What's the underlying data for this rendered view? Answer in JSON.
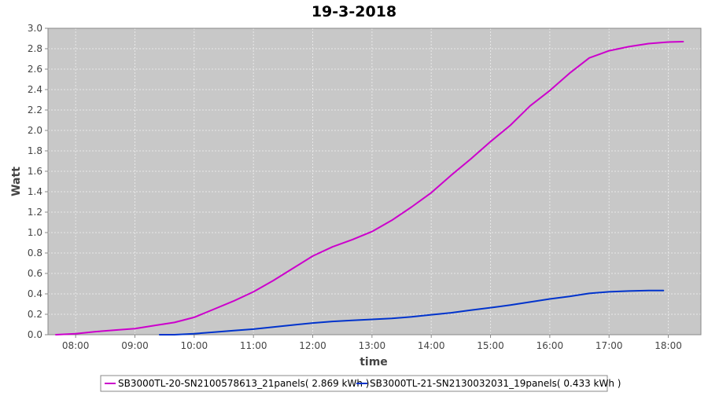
{
  "chart_data": {
    "type": "line",
    "title": "19-3-2018",
    "xlabel": "time",
    "ylabel": "Watt",
    "ylim": [
      0,
      3.0
    ],
    "yticks": [
      "0.0",
      "0.2",
      "0.4",
      "0.6",
      "0.8",
      "1.0",
      "1.2",
      "1.4",
      "1.6",
      "1.8",
      "2.0",
      "2.2",
      "2.4",
      "2.6",
      "2.8",
      "3.0"
    ],
    "xlim": [
      "07:32",
      "18:33"
    ],
    "xticks": [
      "08:00",
      "09:00",
      "10:00",
      "11:00",
      "12:00",
      "13:00",
      "14:00",
      "15:00",
      "16:00",
      "17:00",
      "18:00"
    ],
    "grid": true,
    "legend_position": "bottom",
    "colors": {
      "plot_background": "#c8c8c8",
      "grid": "#e8e8e8",
      "axis": "#888888"
    },
    "series": [
      {
        "name": "SB3000TL-20-SN2100578613_21panels( 2.869 kWh )",
        "color": "#cc00cc",
        "points": [
          [
            "07:40",
            0.0
          ],
          [
            "08:00",
            0.01
          ],
          [
            "08:20",
            0.03
          ],
          [
            "08:40",
            0.045
          ],
          [
            "09:00",
            0.06
          ],
          [
            "09:20",
            0.09
          ],
          [
            "09:40",
            0.12
          ],
          [
            "10:00",
            0.17
          ],
          [
            "10:20",
            0.25
          ],
          [
            "10:40",
            0.33
          ],
          [
            "11:00",
            0.42
          ],
          [
            "11:20",
            0.53
          ],
          [
            "11:40",
            0.65
          ],
          [
            "12:00",
            0.77
          ],
          [
            "12:20",
            0.86
          ],
          [
            "12:40",
            0.93
          ],
          [
            "13:00",
            1.01
          ],
          [
            "13:20",
            1.12
          ],
          [
            "13:40",
            1.25
          ],
          [
            "14:00",
            1.39
          ],
          [
            "14:20",
            1.56
          ],
          [
            "14:40",
            1.72
          ],
          [
            "15:00",
            1.89
          ],
          [
            "15:20",
            2.05
          ],
          [
            "15:40",
            2.24
          ],
          [
            "16:00",
            2.39
          ],
          [
            "16:20",
            2.56
          ],
          [
            "16:40",
            2.71
          ],
          [
            "17:00",
            2.78
          ],
          [
            "17:20",
            2.82
          ],
          [
            "17:40",
            2.85
          ],
          [
            "18:00",
            2.865
          ],
          [
            "18:15",
            2.869
          ]
        ]
      },
      {
        "name": "SB3000TL-21-SN2130032031_19panels( 0.433 kWh )",
        "color": "#0033cc",
        "points": [
          [
            "09:25",
            0.0
          ],
          [
            "09:40",
            0.0
          ],
          [
            "10:00",
            0.01
          ],
          [
            "10:20",
            0.025
          ],
          [
            "10:40",
            0.04
          ],
          [
            "11:00",
            0.055
          ],
          [
            "11:20",
            0.075
          ],
          [
            "11:40",
            0.095
          ],
          [
            "12:00",
            0.115
          ],
          [
            "12:20",
            0.13
          ],
          [
            "12:40",
            0.14
          ],
          [
            "13:00",
            0.15
          ],
          [
            "13:20",
            0.16
          ],
          [
            "13:40",
            0.175
          ],
          [
            "14:00",
            0.195
          ],
          [
            "14:20",
            0.215
          ],
          [
            "14:40",
            0.24
          ],
          [
            "15:00",
            0.265
          ],
          [
            "15:20",
            0.29
          ],
          [
            "15:40",
            0.32
          ],
          [
            "16:00",
            0.35
          ],
          [
            "16:20",
            0.375
          ],
          [
            "16:40",
            0.405
          ],
          [
            "17:00",
            0.42
          ],
          [
            "17:20",
            0.428
          ],
          [
            "17:40",
            0.432
          ],
          [
            "17:55",
            0.433
          ]
        ]
      }
    ]
  }
}
